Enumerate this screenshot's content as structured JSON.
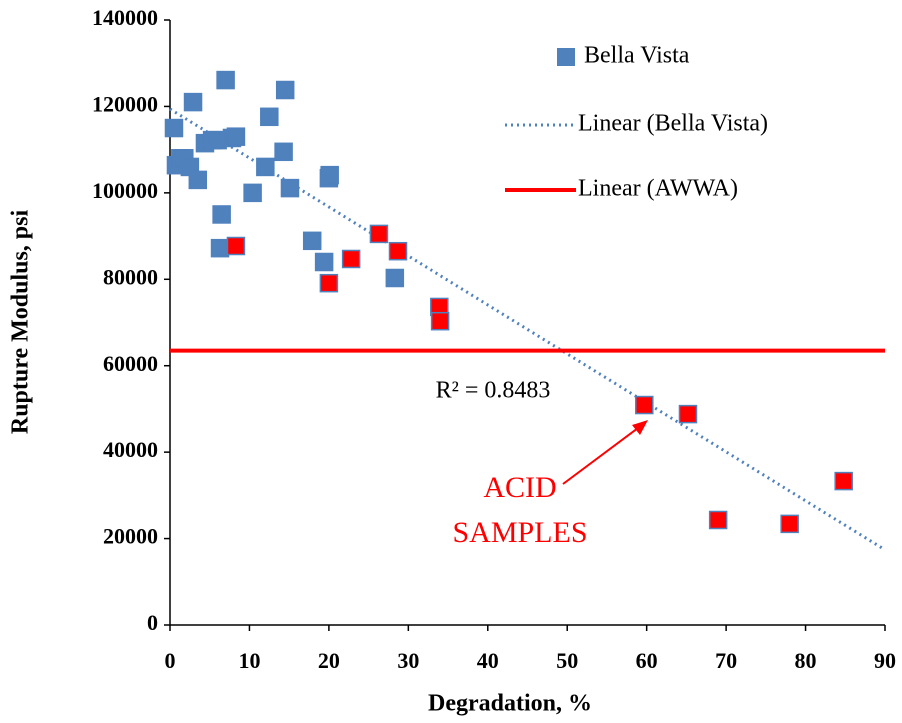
{
  "chart_data": {
    "type": "scatter",
    "x_label": "Degradation, %",
    "y_label": "Rupture Modulus, psi",
    "xlim": [
      0,
      90
    ],
    "xticks": [
      0,
      10,
      20,
      30,
      40,
      50,
      60,
      70,
      80,
      90
    ],
    "ylim": [
      0,
      140000
    ],
    "yticks": [
      0,
      20000,
      40000,
      60000,
      80000,
      100000,
      120000,
      140000
    ],
    "grid": false,
    "legend": "top-right",
    "series": [
      {
        "name": "Bella Vista",
        "color": "#4f81bd",
        "highlight_color": "#ff0000",
        "x": [
          0.5,
          0.75,
          1.3,
          1.8,
          2.5,
          2.9,
          3.5,
          4.4,
          5.3,
          6,
          6.5,
          6.3,
          7,
          7.8,
          8.3,
          10.4,
          12,
          12.5,
          14.3,
          14.5,
          15.1,
          17.9,
          19.4,
          20,
          20.1,
          28.3,
          8.3,
          20,
          22.8,
          26.3,
          28.7,
          33.9,
          34,
          59.7,
          65.2,
          69,
          78,
          84.8
        ],
        "values": [
          115000,
          106400,
          108000,
          108000,
          106000,
          121000,
          103000,
          111500,
          112200,
          112200,
          95000,
          87200,
          126100,
          112700,
          113000,
          100000,
          106000,
          117600,
          109500,
          123800,
          101100,
          88900,
          84000,
          103400,
          104100,
          80300,
          87700,
          79100,
          84700,
          90500,
          86500,
          73600,
          70300,
          50900,
          48800,
          24300,
          23400,
          33300
        ],
        "highlighted": [
          false,
          false,
          false,
          false,
          false,
          false,
          false,
          false,
          false,
          false,
          false,
          false,
          false,
          false,
          false,
          false,
          false,
          false,
          false,
          false,
          false,
          false,
          false,
          false,
          false,
          false,
          true,
          true,
          true,
          true,
          true,
          true,
          true,
          true,
          true,
          true,
          true,
          true
        ]
      },
      {
        "name": "Linear (Bella Vista)",
        "type": "dotted-line",
        "color": "#4f81bd",
        "x": [
          0,
          90
        ],
        "values": [
          119400,
          17400
        ]
      },
      {
        "name": "Linear (AWWA)",
        "type": "line",
        "color": "#ff0000",
        "x": [
          0,
          90
        ],
        "values": [
          63500,
          63500
        ]
      }
    ],
    "annotations": [
      {
        "text": "R² = 0.8483",
        "color": "#000000"
      },
      {
        "text": "ACID",
        "color": "#ff0000"
      },
      {
        "text": "SAMPLES",
        "color": "#ff0000"
      }
    ]
  }
}
